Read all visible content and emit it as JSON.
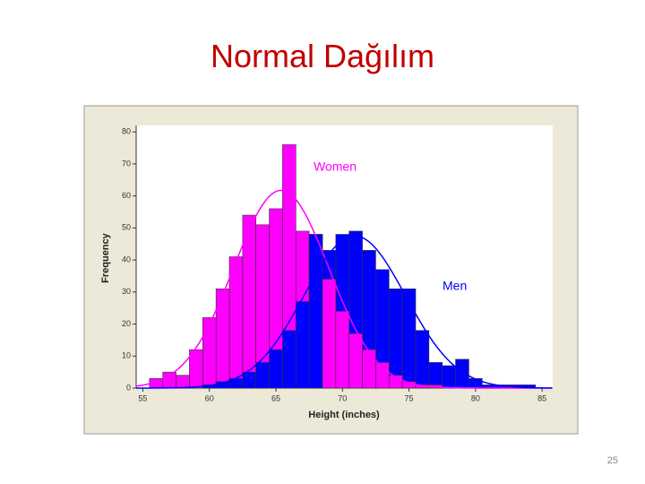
{
  "slide": {
    "title": "Normal Dağılım",
    "page_number": "25"
  },
  "chart_data": {
    "type": "histogram",
    "xlabel": "Height (inches)",
    "ylabel": "Frequency",
    "bins": [
      55.5,
      56.5,
      57.5,
      58.5,
      59.5,
      60.5,
      61.5,
      62.5,
      63.5,
      64.5,
      65.5,
      66.5,
      67.5,
      68.5,
      69.5,
      70.5,
      71.5,
      72.5,
      73.5,
      74.5,
      75.5,
      76.5,
      77.5,
      78.5,
      79.5,
      80.5,
      81.5,
      82.5,
      83.5,
      84.5
    ],
    "series": [
      {
        "name": "Women",
        "color": "#ff00ff",
        "values": [
          3,
          5,
          4,
          12,
          22,
          31,
          41,
          54,
          51,
          56,
          76,
          49,
          48,
          34,
          24,
          17,
          12,
          8,
          4,
          2,
          1,
          1,
          0,
          0,
          0,
          0,
          0,
          0,
          0
        ]
      },
      {
        "name": "Men",
        "color": "#0000ff",
        "values": [
          0,
          0,
          0,
          0,
          1,
          2,
          3,
          5,
          8,
          12,
          18,
          27,
          48,
          43,
          48,
          49,
          43,
          37,
          31,
          31,
          18,
          8,
          7,
          9,
          3,
          1,
          1,
          1,
          1
        ]
      }
    ],
    "xlim": [
      54.5,
      85.8
    ],
    "ylim": [
      0,
      82
    ],
    "xticks": [
      55,
      60,
      65,
      70,
      75,
      80,
      85
    ],
    "yticks": [
      0,
      10,
      20,
      30,
      40,
      50,
      60,
      70,
      80
    ]
  }
}
